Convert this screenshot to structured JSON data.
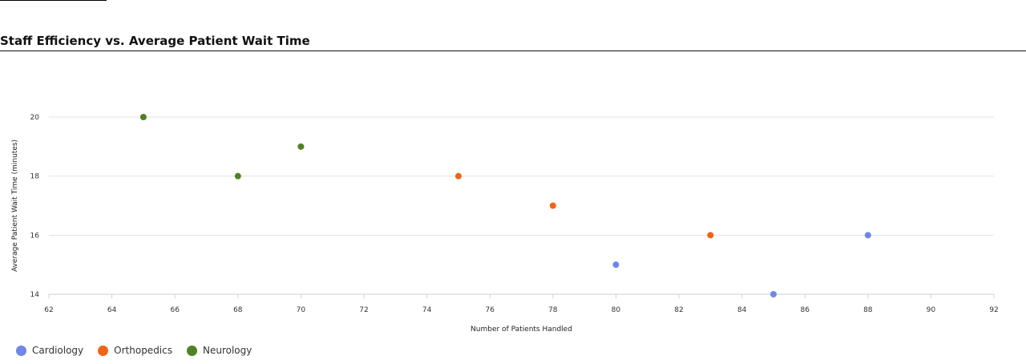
{
  "chart_data": {
    "type": "scatter",
    "title": "Staff Efficiency vs. Average Patient Wait Time",
    "xlabel": "Number of Patients Handled",
    "ylabel": "Average Patient Wait Time (minutes)",
    "xlim": [
      62,
      92
    ],
    "ylim": [
      14,
      20
    ],
    "x_ticks": [
      62,
      64,
      66,
      68,
      70,
      72,
      74,
      76,
      78,
      80,
      82,
      84,
      86,
      88,
      90,
      92
    ],
    "y_ticks": [
      14,
      16,
      18,
      20
    ],
    "grid": "horizontal",
    "legend_position": "bottom-left",
    "series": [
      {
        "name": "Cardiology",
        "color": "#6f86e8",
        "points": [
          {
            "x": 80,
            "y": 15
          },
          {
            "x": 85,
            "y": 14
          },
          {
            "x": 88,
            "y": 16
          }
        ]
      },
      {
        "name": "Orthopedics",
        "color": "#f06418",
        "points": [
          {
            "x": 75,
            "y": 18
          },
          {
            "x": 78,
            "y": 17
          },
          {
            "x": 83,
            "y": 16
          }
        ]
      },
      {
        "name": "Neurology",
        "color": "#4f8224",
        "points": [
          {
            "x": 65,
            "y": 20
          },
          {
            "x": 68,
            "y": 18
          },
          {
            "x": 70,
            "y": 19
          }
        ]
      }
    ]
  }
}
